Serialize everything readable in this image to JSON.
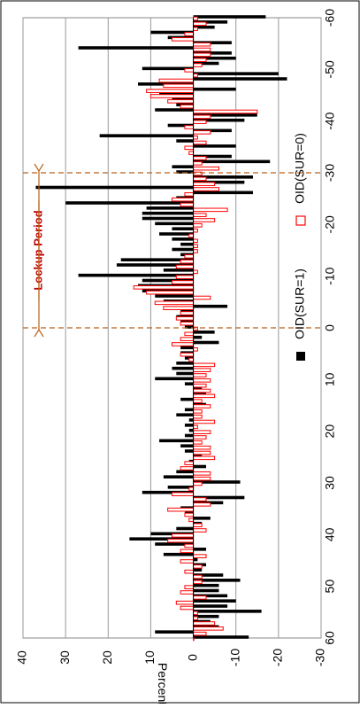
{
  "chart_data": {
    "type": "bar",
    "orientation": "rotated-90-clockwise",
    "xlabel": "",
    "ylabel": "Percent",
    "xlim": [
      -60,
      60
    ],
    "ylim": [
      -30,
      40
    ],
    "x_ticks": [
      -60,
      -50,
      -40,
      -30,
      -20,
      -10,
      0,
      10,
      20,
      30,
      40,
      50,
      60
    ],
    "y_ticks": [
      40,
      30,
      20,
      10,
      0,
      -10,
      -20,
      -30
    ],
    "grid": true,
    "legend_position": "right",
    "annotation": {
      "label": "Lockup Period",
      "from_x": -30,
      "to_x": 0
    },
    "series": [
      {
        "name": "OID(SUR=1)",
        "color": "#000000",
        "fill": "solid",
        "points": [
          [
            -60,
            -17
          ],
          [
            -59,
            -8
          ],
          [
            -58,
            -5
          ],
          [
            -57,
            10
          ],
          [
            -56,
            6
          ],
          [
            -55,
            -9
          ],
          [
            -54,
            27
          ],
          [
            -53,
            -9
          ],
          [
            -52,
            -10
          ],
          [
            -51,
            -6
          ],
          [
            -50,
            12
          ],
          [
            -49,
            -20
          ],
          [
            -48,
            -22
          ],
          [
            -47,
            13
          ],
          [
            -46,
            -10
          ],
          [
            -45,
            8
          ],
          [
            -44,
            5
          ],
          [
            -43,
            4
          ],
          [
            -42,
            9
          ],
          [
            -41,
            -15
          ],
          [
            -40,
            -12
          ],
          [
            -39,
            6
          ],
          [
            -38,
            -9
          ],
          [
            -37,
            22
          ],
          [
            -36,
            4
          ],
          [
            -35,
            -10
          ],
          [
            -34,
            0
          ],
          [
            -33,
            -9
          ],
          [
            -32,
            -18
          ],
          [
            -31,
            5
          ],
          [
            -30,
            4
          ],
          [
            -29,
            -14
          ],
          [
            -28,
            -12
          ],
          [
            -27,
            37
          ],
          [
            -26,
            -14
          ],
          [
            -25,
            4
          ],
          [
            -24,
            30
          ],
          [
            -23,
            11
          ],
          [
            -22,
            12
          ],
          [
            -21,
            12
          ],
          [
            -20,
            9
          ],
          [
            -19,
            5
          ],
          [
            -18,
            8
          ],
          [
            -17,
            5
          ],
          [
            -16,
            3
          ],
          [
            -15,
            5
          ],
          [
            -14,
            3
          ],
          [
            -13,
            17
          ],
          [
            -12,
            18
          ],
          [
            -11,
            7
          ],
          [
            -10,
            27
          ],
          [
            -9,
            12
          ],
          [
            -8,
            13
          ],
          [
            -7,
            12
          ],
          [
            -6,
            9
          ],
          [
            -5,
            7
          ],
          [
            -4,
            -8
          ],
          [
            -3,
            3
          ],
          [
            -2,
            4
          ],
          [
            -1,
            3
          ],
          [
            0,
            2
          ],
          [
            1,
            -5
          ],
          [
            2,
            -2
          ],
          [
            3,
            -6
          ],
          [
            4,
            3
          ],
          [
            5,
            3
          ],
          [
            6,
            2
          ],
          [
            7,
            4
          ],
          [
            8,
            5
          ],
          [
            9,
            4
          ],
          [
            10,
            9
          ],
          [
            11,
            2
          ],
          [
            12,
            -2
          ],
          [
            13,
            -3
          ],
          [
            14,
            3
          ],
          [
            15,
            -3
          ],
          [
            16,
            2
          ],
          [
            17,
            4
          ],
          [
            18,
            1
          ],
          [
            19,
            2
          ],
          [
            20,
            1
          ],
          [
            21,
            2
          ],
          [
            22,
            8
          ],
          [
            23,
            3
          ],
          [
            24,
            2
          ],
          [
            25,
            -2
          ],
          [
            26,
            1
          ],
          [
            27,
            -3
          ],
          [
            28,
            4
          ],
          [
            29,
            7
          ],
          [
            30,
            -11
          ],
          [
            31,
            6
          ],
          [
            32,
            12
          ],
          [
            33,
            -12
          ],
          [
            34,
            -7
          ],
          [
            35,
            3
          ],
          [
            36,
            2
          ],
          [
            37,
            -4
          ],
          [
            38,
            -2
          ],
          [
            39,
            4
          ],
          [
            40,
            10
          ],
          [
            41,
            15
          ],
          [
            42,
            9
          ],
          [
            43,
            -3
          ],
          [
            44,
            7
          ],
          [
            45,
            -1
          ],
          [
            46,
            -3
          ],
          [
            47,
            -2
          ],
          [
            48,
            -7
          ],
          [
            49,
            -11
          ],
          [
            50,
            -6
          ],
          [
            51,
            -6
          ],
          [
            52,
            -8
          ],
          [
            53,
            -10
          ],
          [
            54,
            -8
          ],
          [
            55,
            -16
          ],
          [
            56,
            -6
          ],
          [
            57,
            -4
          ],
          [
            58,
            -6
          ],
          [
            59,
            9
          ],
          [
            60,
            -13
          ]
        ]
      },
      {
        "name": "OID(SUR=0)",
        "color": "#ff0000",
        "fill": "hollow",
        "points": [
          [
            -60,
            -1
          ],
          [
            -59,
            -3
          ],
          [
            -58,
            -1
          ],
          [
            -57,
            2
          ],
          [
            -56,
            5
          ],
          [
            -55,
            -4
          ],
          [
            -54,
            -4
          ],
          [
            -53,
            -4
          ],
          [
            -52,
            -3
          ],
          [
            -51,
            -2
          ],
          [
            -50,
            2
          ],
          [
            -49,
            -1
          ],
          [
            -48,
            8
          ],
          [
            -47,
            7
          ],
          [
            -46,
            11
          ],
          [
            -45,
            10
          ],
          [
            -44,
            6
          ],
          [
            -43,
            3
          ],
          [
            -42,
            -15
          ],
          [
            -41,
            -4
          ],
          [
            -40,
            -3
          ],
          [
            -39,
            2
          ],
          [
            -38,
            -4
          ],
          [
            -37,
            -1
          ],
          [
            -36,
            -3
          ],
          [
            -35,
            2
          ],
          [
            -34,
            1
          ],
          [
            -33,
            -3
          ],
          [
            -32,
            -2
          ],
          [
            -31,
            -6
          ],
          [
            -30,
            -2
          ],
          [
            -29,
            -3
          ],
          [
            -28,
            -5
          ],
          [
            -27,
            -6
          ],
          [
            -26,
            2
          ],
          [
            -25,
            5
          ],
          [
            -24,
            3
          ],
          [
            -23,
            -8
          ],
          [
            -22,
            -3
          ],
          [
            -21,
            -5
          ],
          [
            -20,
            -2
          ],
          [
            -19,
            -1
          ],
          [
            -18,
            1
          ],
          [
            -17,
            -1
          ],
          [
            -16,
            -1
          ],
          [
            -15,
            -1
          ],
          [
            -14,
            2
          ],
          [
            -13,
            3
          ],
          [
            -12,
            4
          ],
          [
            -11,
            -1
          ],
          [
            -10,
            4
          ],
          [
            -9,
            5
          ],
          [
            -8,
            14
          ],
          [
            -7,
            11
          ],
          [
            -6,
            -4
          ],
          [
            -5,
            9
          ],
          [
            -4,
            7
          ],
          [
            -3,
            3
          ],
          [
            -2,
            4
          ],
          [
            -1,
            3
          ],
          [
            0,
            -1
          ],
          [
            1,
            2
          ],
          [
            2,
            3
          ],
          [
            3,
            5
          ],
          [
            4,
            -1
          ],
          [
            5,
            3
          ],
          [
            6,
            1
          ],
          [
            7,
            -5
          ],
          [
            8,
            -4
          ],
          [
            9,
            -3
          ],
          [
            10,
            -4
          ],
          [
            11,
            -3
          ],
          [
            12,
            -4
          ],
          [
            13,
            -5
          ],
          [
            14,
            -2
          ],
          [
            15,
            -4
          ],
          [
            16,
            -2
          ],
          [
            17,
            -2
          ],
          [
            18,
            -5
          ],
          [
            19,
            -1
          ],
          [
            20,
            -4
          ],
          [
            21,
            -3
          ],
          [
            22,
            -2
          ],
          [
            23,
            -4
          ],
          [
            24,
            -4
          ],
          [
            25,
            -5
          ],
          [
            26,
            2
          ],
          [
            27,
            3
          ],
          [
            28,
            -4
          ],
          [
            29,
            -4
          ],
          [
            30,
            -2
          ],
          [
            31,
            1
          ],
          [
            32,
            5
          ],
          [
            33,
            -3
          ],
          [
            34,
            -4
          ],
          [
            35,
            6
          ],
          [
            36,
            2
          ],
          [
            37,
            1
          ],
          [
            38,
            -2
          ],
          [
            39,
            -3
          ],
          [
            40,
            5
          ],
          [
            41,
            6
          ],
          [
            42,
            2
          ],
          [
            43,
            3
          ],
          [
            44,
            -3
          ],
          [
            45,
            3
          ],
          [
            46,
            -2
          ],
          [
            47,
            2
          ],
          [
            48,
            -2
          ],
          [
            49,
            -2
          ],
          [
            50,
            2
          ],
          [
            51,
            3
          ],
          [
            52,
            -3
          ],
          [
            53,
            4
          ],
          [
            54,
            3
          ],
          [
            55,
            -1
          ],
          [
            56,
            -1
          ],
          [
            57,
            -5
          ],
          [
            58,
            -7
          ],
          [
            59,
            -3
          ],
          [
            60,
            0
          ]
        ]
      }
    ]
  }
}
